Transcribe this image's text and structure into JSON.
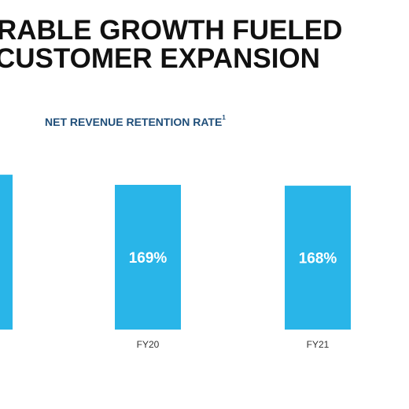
{
  "slide": {
    "title_line_1": "RABLE GROWTH FUELED",
    "title_line_2": "CUSTOMER EXPANSION"
  },
  "chart_data": {
    "type": "bar",
    "title": "NET REVENUE RETENTION RATE",
    "title_footnote": "1",
    "categories": [
      "",
      "FY20",
      "FY21"
    ],
    "values": [
      null,
      169,
      168
    ],
    "data_labels": [
      "",
      "169%",
      "168%"
    ],
    "bar_color": "#29b5e8",
    "label_color": "#ffffff",
    "title_color": "#1f4e79",
    "grid": false,
    "legend": "none"
  }
}
